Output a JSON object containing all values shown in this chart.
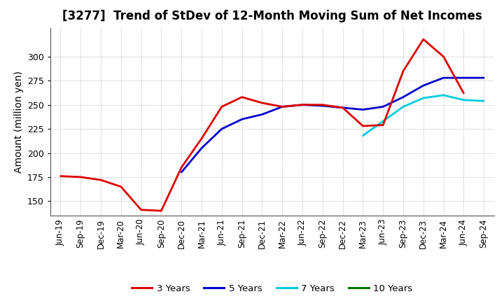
{
  "title": "[3277]  Trend of StDev of 12-Month Moving Sum of Net Incomes",
  "ylabel": "Amount (million yen)",
  "background_color": "#ffffff",
  "grid_color": "#999999",
  "title_fontsize": 12,
  "axis_label_fontsize": 10,
  "tick_fontsize": 8.5,
  "legend_fontsize": 9.5,
  "line_width": 2.0,
  "series": {
    "3 Years": {
      "color": "#dd0000",
      "values": [
        176,
        175,
        172,
        165,
        141,
        140,
        185,
        215,
        248,
        258,
        252,
        248,
        250,
        250,
        247,
        228,
        229,
        285,
        318,
        300,
        262,
        null
      ]
    },
    "5 Years": {
      "color": "#0000cc",
      "values": [
        null,
        null,
        null,
        null,
        null,
        null,
        180,
        205,
        225,
        235,
        240,
        248,
        250,
        249,
        247,
        245,
        248,
        258,
        270,
        278,
        278,
        278
      ]
    },
    "7 Years": {
      "color": "#00ccdd",
      "values": [
        null,
        null,
        null,
        null,
        null,
        null,
        null,
        null,
        null,
        null,
        null,
        null,
        null,
        null,
        null,
        218,
        233,
        248,
        257,
        260,
        255,
        254
      ]
    },
    "10 Years": {
      "color": "#007700",
      "values": [
        null,
        null,
        null,
        null,
        null,
        null,
        null,
        null,
        null,
        null,
        null,
        null,
        null,
        null,
        null,
        null,
        null,
        null,
        null,
        null,
        null,
        null
      ]
    }
  },
  "xtick_labels": [
    "Jun-19",
    "Sep-19",
    "Dec-19",
    "Mar-20",
    "Jun-20",
    "Sep-20",
    "Dec-20",
    "Mar-21",
    "Jun-21",
    "Sep-21",
    "Dec-21",
    "Mar-22",
    "Jun-22",
    "Sep-22",
    "Dec-22",
    "Mar-23",
    "Jun-23",
    "Sep-23",
    "Dec-23",
    "Mar-24",
    "Jun-24",
    "Sep-24"
  ],
  "ylim": [
    135,
    330
  ],
  "yticks": [
    150,
    175,
    200,
    225,
    250,
    275,
    300
  ],
  "legend_order": [
    "3 Years",
    "5 Years",
    "7 Years",
    "10 Years"
  ]
}
